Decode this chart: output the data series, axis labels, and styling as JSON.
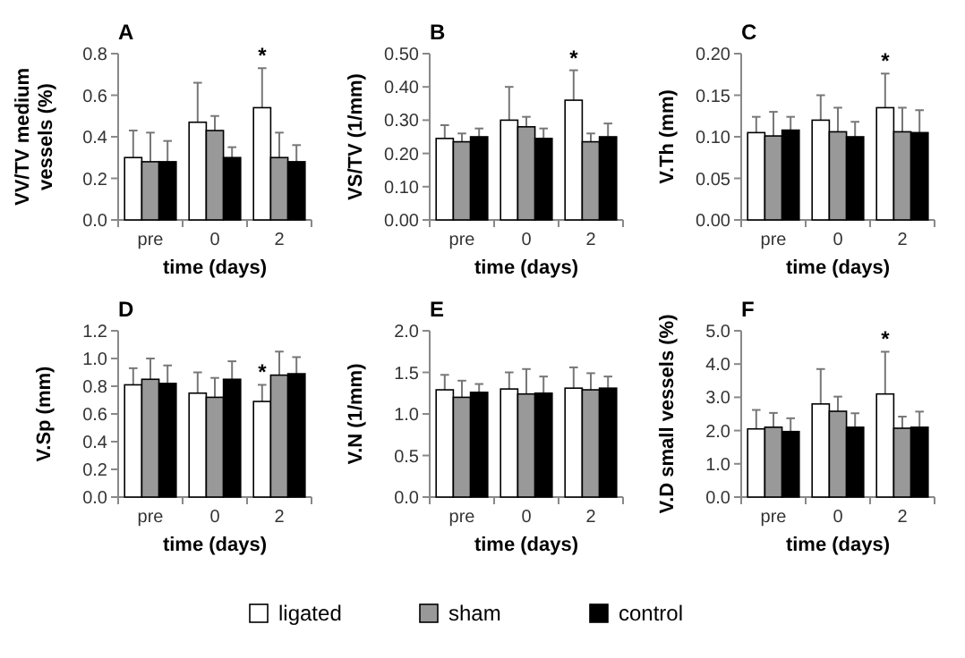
{
  "chart_data": [
    {
      "type": "bar",
      "title": "A",
      "xlabel": "time (days)",
      "ylabel": "VV/TV medium vessels (%)",
      "categories": [
        "pre",
        "0",
        "2"
      ],
      "ylim": [
        0,
        0.8
      ],
      "yticks": [
        {
          "value": 0,
          "label": "0.0"
        },
        {
          "value": 0.2,
          "label": "0.2"
        },
        {
          "value": 0.4,
          "label": "0.4"
        },
        {
          "value": 0.6,
          "label": "0.6"
        },
        {
          "value": 0.8,
          "label": "0.8"
        }
      ],
      "annotations": [
        "*"
      ],
      "series": [
        {
          "color": "#ffffff",
          "values": [
            0.3,
            0.47,
            0.54
          ],
          "errors": [
            [
              0.3,
              0.43
            ],
            [
              0.47,
              0.66
            ],
            [
              0.54,
              0.73
            ]
          ]
        },
        {
          "color": "#999999",
          "values": [
            0.28,
            0.43,
            0.3
          ],
          "errors": [
            [
              0.28,
              0.42
            ],
            [
              0.43,
              0.5
            ],
            [
              0.3,
              0.42
            ]
          ]
        },
        {
          "color": "#000000",
          "values": [
            0.28,
            0.3,
            0.28
          ],
          "errors": [
            [
              0.28,
              0.38
            ],
            [
              0.3,
              0.35
            ],
            [
              0.28,
              0.36
            ]
          ]
        }
      ]
    },
    {
      "type": "bar",
      "title": "B",
      "xlabel": "time (days)",
      "ylabel": "VS/TV (1/mm)",
      "categories": [
        "pre",
        "0",
        "2"
      ],
      "ylim": [
        0,
        0.5
      ],
      "yticks": [
        {
          "value": 0,
          "label": "0.00"
        },
        {
          "value": 0.1,
          "label": "0.10"
        },
        {
          "value": 0.2,
          "label": "0.20"
        },
        {
          "value": 0.3,
          "label": "0.30"
        },
        {
          "value": 0.4,
          "label": "0.40"
        },
        {
          "value": 0.5,
          "label": "0.50"
        }
      ],
      "annotations": [
        "*"
      ],
      "series": [
        {
          "color": "#ffffff",
          "values": [
            0.245,
            0.3,
            0.36
          ],
          "errors": [
            [
              0.245,
              0.285
            ],
            [
              0.3,
              0.4
            ],
            [
              0.36,
              0.45
            ]
          ]
        },
        {
          "color": "#999999",
          "values": [
            0.235,
            0.28,
            0.235
          ],
          "errors": [
            [
              0.235,
              0.26
            ],
            [
              0.28,
              0.31
            ],
            [
              0.235,
              0.26
            ]
          ]
        },
        {
          "color": "#000000",
          "values": [
            0.25,
            0.245,
            0.25
          ],
          "errors": [
            [
              0.25,
              0.275
            ],
            [
              0.245,
              0.275
            ],
            [
              0.25,
              0.29
            ]
          ]
        }
      ]
    },
    {
      "type": "bar",
      "title": "C",
      "xlabel": "time (days)",
      "ylabel": "V.Th (mm)",
      "categories": [
        "pre",
        "0",
        "2"
      ],
      "ylim": [
        0,
        0.2
      ],
      "yticks": [
        {
          "value": 0,
          "label": "0.00"
        },
        {
          "value": 0.05,
          "label": "0.05"
        },
        {
          "value": 0.1,
          "label": "0.10"
        },
        {
          "value": 0.15,
          "label": "0.15"
        },
        {
          "value": 0.2,
          "label": "0.20"
        }
      ],
      "annotations": [
        "*"
      ],
      "series": [
        {
          "color": "#ffffff",
          "values": [
            0.105,
            0.12,
            0.135
          ],
          "errors": [
            [
              0.105,
              0.124
            ],
            [
              0.12,
              0.15
            ],
            [
              0.135,
              0.176
            ]
          ]
        },
        {
          "color": "#999999",
          "values": [
            0.101,
            0.106,
            0.106
          ],
          "errors": [
            [
              0.101,
              0.13
            ],
            [
              0.106,
              0.135
            ],
            [
              0.106,
              0.135
            ]
          ]
        },
        {
          "color": "#000000",
          "values": [
            0.108,
            0.1,
            0.105
          ],
          "errors": [
            [
              0.108,
              0.124
            ],
            [
              0.1,
              0.118
            ],
            [
              0.105,
              0.132
            ]
          ]
        }
      ]
    },
    {
      "type": "bar",
      "title": "D",
      "xlabel": "time (days)",
      "ylabel": "V.Sp (mm)",
      "categories": [
        "pre",
        "0",
        "2"
      ],
      "ylim": [
        0,
        1.2
      ],
      "yticks": [
        {
          "value": 0,
          "label": "0.0"
        },
        {
          "value": 0.2,
          "label": "0.2"
        },
        {
          "value": 0.4,
          "label": "0.4"
        },
        {
          "value": 0.6,
          "label": "0.6"
        },
        {
          "value": 0.8,
          "label": "0.8"
        },
        {
          "value": 1,
          "label": "1.0"
        },
        {
          "value": 1.2,
          "label": "1.2"
        }
      ],
      "annotations": [
        "*"
      ],
      "series": [
        {
          "color": "#ffffff",
          "values": [
            0.81,
            0.75,
            0.69
          ],
          "errors": [
            [
              0.81,
              0.93
            ],
            [
              0.75,
              0.9
            ],
            [
              0.69,
              0.81
            ]
          ]
        },
        {
          "color": "#999999",
          "values": [
            0.85,
            0.72,
            0.88
          ],
          "errors": [
            [
              0.85,
              1.0
            ],
            [
              0.72,
              0.86
            ],
            [
              0.88,
              1.05
            ]
          ]
        },
        {
          "color": "#000000",
          "values": [
            0.82,
            0.85,
            0.89
          ],
          "errors": [
            [
              0.82,
              0.95
            ],
            [
              0.85,
              0.98
            ],
            [
              0.89,
              1.01
            ]
          ]
        }
      ]
    },
    {
      "type": "bar",
      "title": "E",
      "xlabel": "time (days)",
      "ylabel": "V.N (1/mm)",
      "categories": [
        "pre",
        "0",
        "2"
      ],
      "ylim": [
        0,
        2
      ],
      "yticks": [
        {
          "value": 0,
          "label": "0.0"
        },
        {
          "value": 0.5,
          "label": "0.5"
        },
        {
          "value": 1,
          "label": "1.0"
        },
        {
          "value": 1.5,
          "label": "1.5"
        },
        {
          "value": 2,
          "label": "2.0"
        }
      ],
      "series": [
        {
          "color": "#ffffff",
          "values": [
            1.29,
            1.3,
            1.31
          ],
          "errors": [
            [
              1.29,
              1.47
            ],
            [
              1.3,
              1.5
            ],
            [
              1.31,
              1.56
            ]
          ]
        },
        {
          "color": "#999999",
          "values": [
            1.2,
            1.24,
            1.29
          ],
          "errors": [
            [
              1.2,
              1.4
            ],
            [
              1.24,
              1.54
            ],
            [
              1.29,
              1.49
            ]
          ]
        },
        {
          "color": "#000000",
          "values": [
            1.26,
            1.25,
            1.31
          ],
          "errors": [
            [
              1.26,
              1.36
            ],
            [
              1.25,
              1.45
            ],
            [
              1.31,
              1.45
            ]
          ]
        }
      ]
    },
    {
      "type": "bar",
      "title": "F",
      "xlabel": "time (days)",
      "ylabel": "V.D small vessels (%)",
      "categories": [
        "pre",
        "0",
        "2"
      ],
      "ylim": [
        0,
        5
      ],
      "yticks": [
        {
          "value": 0,
          "label": "0.0"
        },
        {
          "value": 1,
          "label": "1.0"
        },
        {
          "value": 2,
          "label": "2.0"
        },
        {
          "value": 3,
          "label": "3.0"
        },
        {
          "value": 4,
          "label": "4.0"
        },
        {
          "value": 5,
          "label": "5.0"
        }
      ],
      "annotations": [
        "*"
      ],
      "legend": "bottom",
      "series": [
        {
          "name": "ligated",
          "color": "#ffffff",
          "values": [
            2.05,
            2.8,
            3.1
          ],
          "errors": [
            [
              2.05,
              2.62
            ],
            [
              2.8,
              3.85
            ],
            [
              3.1,
              4.37
            ]
          ]
        },
        {
          "name": "sham",
          "color": "#999999",
          "values": [
            2.1,
            2.58,
            2.07
          ],
          "errors": [
            [
              2.1,
              2.53
            ],
            [
              2.58,
              3.02
            ],
            [
              2.07,
              2.42
            ]
          ]
        },
        {
          "name": "control",
          "color": "#000000",
          "values": [
            1.97,
            2.1,
            2.1
          ],
          "errors": [
            [
              1.97,
              2.37
            ],
            [
              2.1,
              2.52
            ],
            [
              2.1,
              2.57
            ]
          ]
        }
      ]
    }
  ]
}
